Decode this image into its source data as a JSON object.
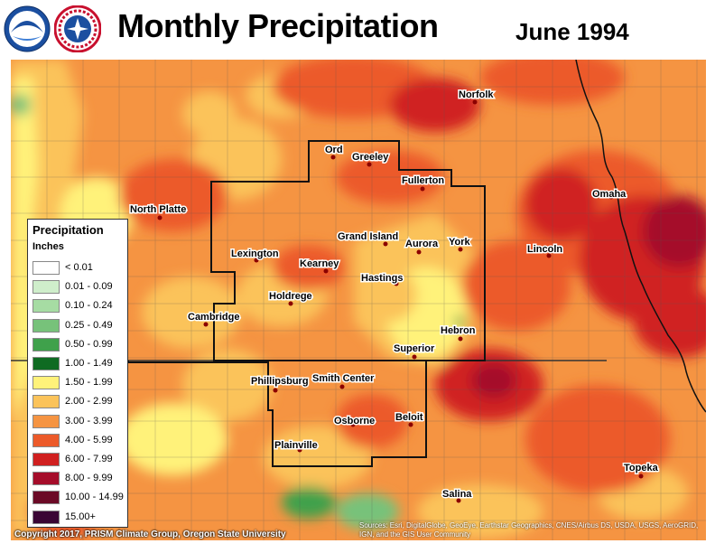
{
  "header": {
    "title": "Monthly Precipitation",
    "date": "June 1994"
  },
  "logos": [
    "noaa-logo",
    "national-weather-service-logo"
  ],
  "legend": {
    "title": "Precipitation",
    "unit": "Inches",
    "items": [
      {
        "label": "< 0.01",
        "color": "#ffffff"
      },
      {
        "label": "0.01 - 0.09",
        "color": "#cfeecb"
      },
      {
        "label": "0.10 - 0.24",
        "color": "#a6dca3"
      },
      {
        "label": "0.25 - 0.49",
        "color": "#77c27a"
      },
      {
        "label": "0.50 - 0.99",
        "color": "#3fa14b"
      },
      {
        "label": "1.00 - 1.49",
        "color": "#0f6b22"
      },
      {
        "label": "1.50 - 1.99",
        "color": "#fff27a"
      },
      {
        "label": "2.00 - 2.99",
        "color": "#fbc35a"
      },
      {
        "label": "3.00 - 3.99",
        "color": "#f59442"
      },
      {
        "label": "4.00 - 5.99",
        "color": "#ec5a2a"
      },
      {
        "label": "6.00 - 7.99",
        "color": "#d02020"
      },
      {
        "label": "8.00 - 9.99",
        "color": "#a50d2a"
      },
      {
        "label": "10.00 - 14.99",
        "color": "#6b0a26"
      },
      {
        "label": "15.00+",
        "color": "#3a0635"
      }
    ]
  },
  "cities": [
    {
      "name": "Norfolk"
    },
    {
      "name": "Ord"
    },
    {
      "name": "Greeley"
    },
    {
      "name": "Fullerton"
    },
    {
      "name": "Omaha"
    },
    {
      "name": "North Platte"
    },
    {
      "name": "Grand Island"
    },
    {
      "name": "Aurora"
    },
    {
      "name": "York"
    },
    {
      "name": "Lincoln"
    },
    {
      "name": "Lexington"
    },
    {
      "name": "Kearney"
    },
    {
      "name": "Hastings"
    },
    {
      "name": "Holdrege"
    },
    {
      "name": "Cambridge"
    },
    {
      "name": "Hebron"
    },
    {
      "name": "Superior"
    },
    {
      "name": "Phillipsburg"
    },
    {
      "name": "Smith Center"
    },
    {
      "name": "Osborne"
    },
    {
      "name": "Beloit"
    },
    {
      "name": "Plainville"
    },
    {
      "name": "Topeka"
    },
    {
      "name": "Salina"
    }
  ],
  "footer": {
    "copyright": "Copyright 2017, PRISM Climate Group, Oregon State University",
    "sources": "Sources: Esri, DigitalGlobe, GeoEye, Earthstar Geographics, CNES/Airbus DS, USDA, USGS, AeroGRID, IGN, and the GIS User Community"
  }
}
